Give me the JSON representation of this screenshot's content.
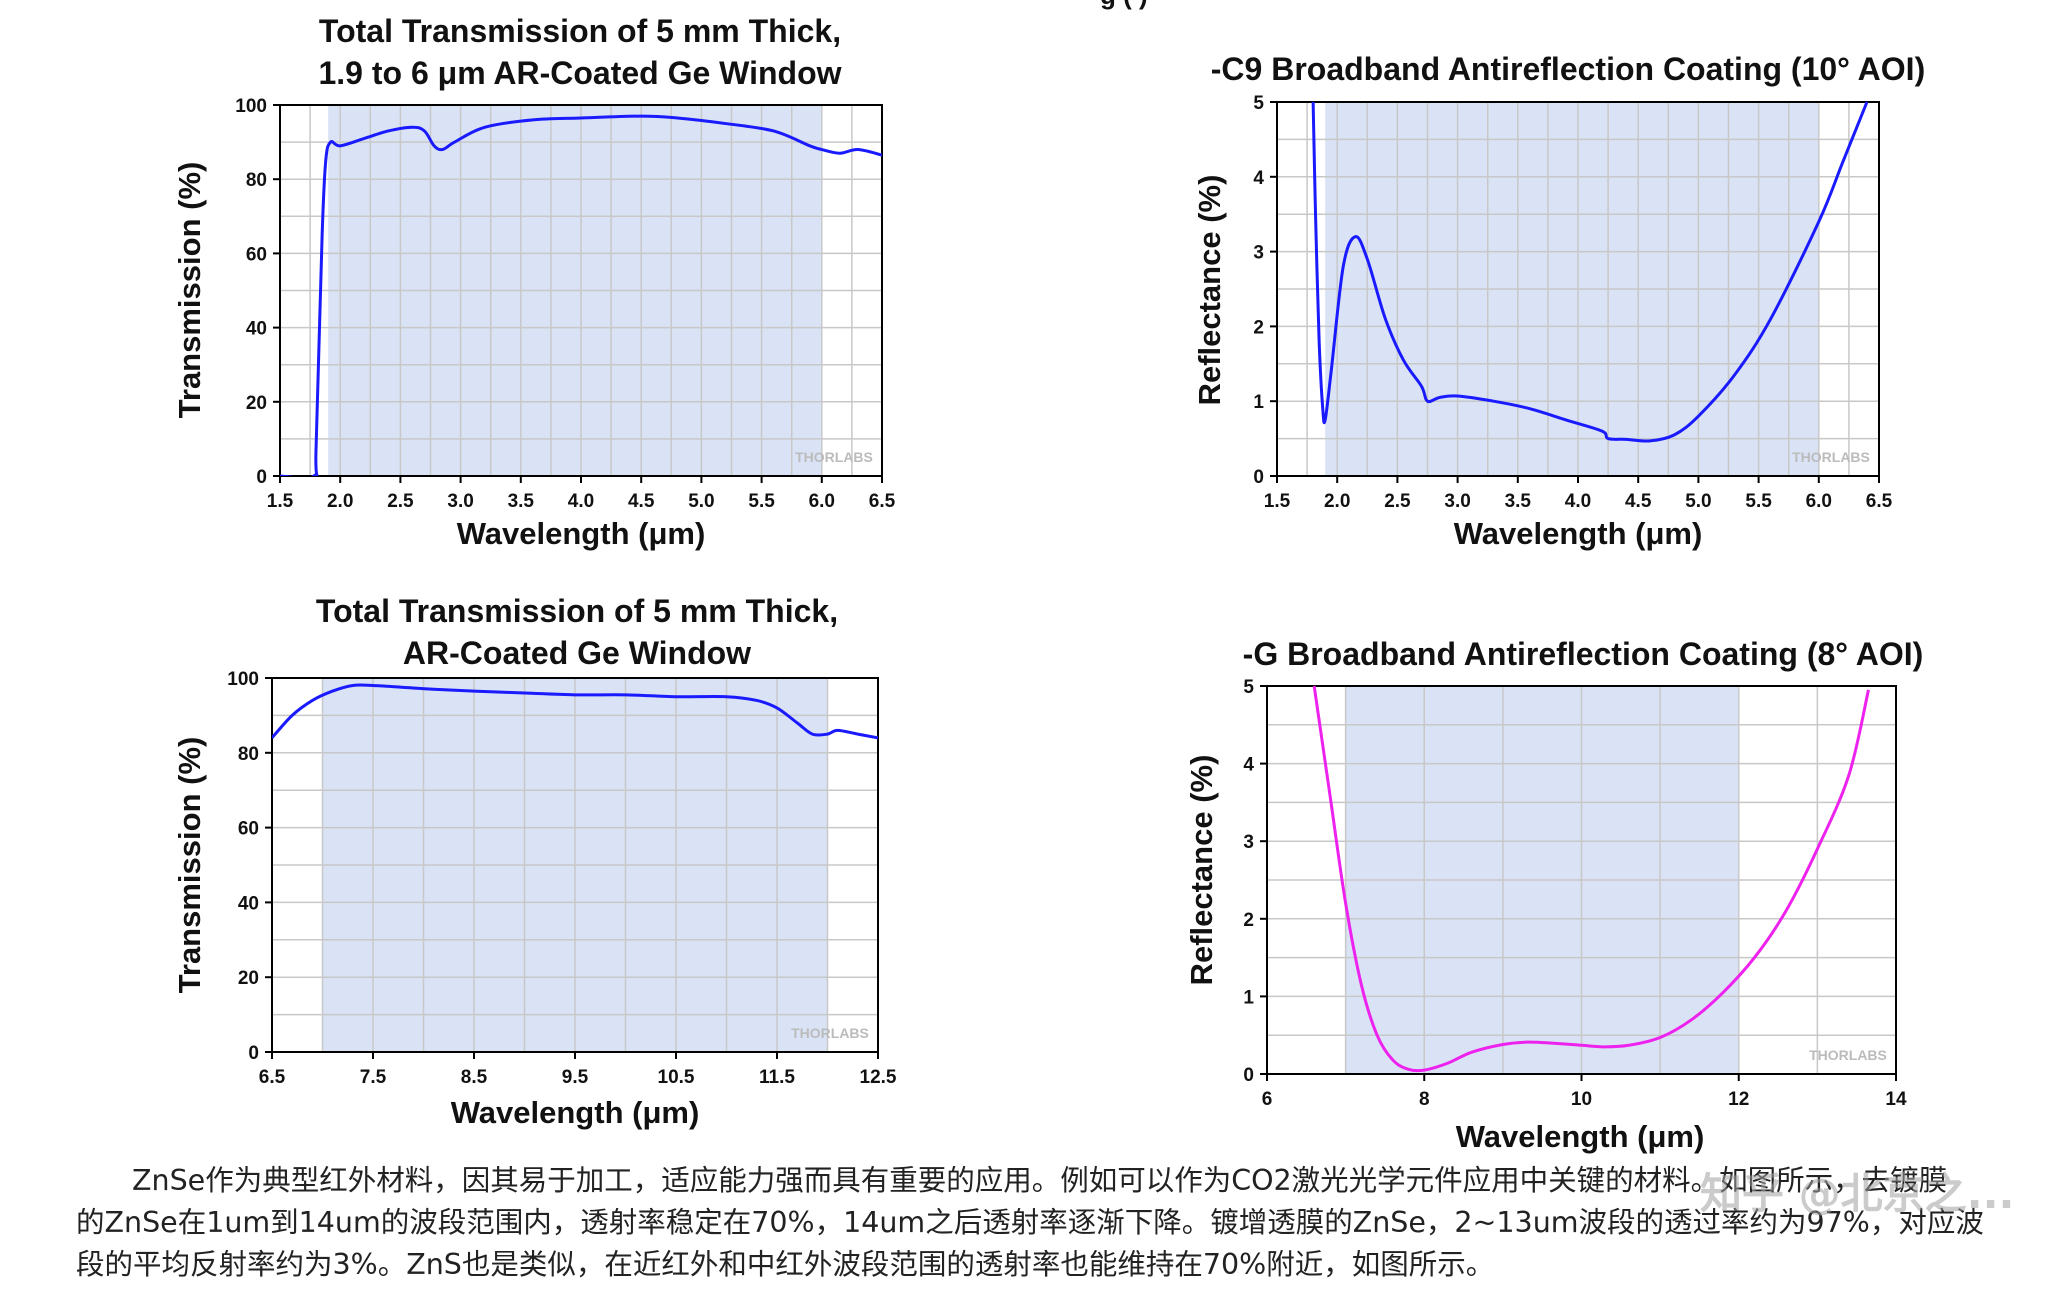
{
  "top_cutoff_text": "g   (  )",
  "watermark_logo": "THORLABS",
  "charts": [
    {
      "title_lines": [
        "Total Transmission of 5 mm Thick,",
        "1.9 to 6 μm AR-Coated Ge Window"
      ],
      "xlabel": "Wavelength (μm)",
      "ylabel": "Transmission (%)",
      "xticks": [
        "1.5",
        "2.0",
        "2.5",
        "3.0",
        "3.5",
        "4.0",
        "4.5",
        "5.0",
        "5.5",
        "6.0",
        "6.5"
      ],
      "yticks": [
        "0",
        "20",
        "40",
        "60",
        "80",
        "100"
      ]
    },
    {
      "title_lines": [
        "-C9 Broadband Antireflection Coating (10° AOI)"
      ],
      "xlabel": "Wavelength (μm)",
      "ylabel": "Reflectance (%)",
      "xticks": [
        "1.5",
        "2.0",
        "2.5",
        "3.0",
        "3.5",
        "4.0",
        "4.5",
        "5.0",
        "5.5",
        "6.0",
        "6.5"
      ],
      "yticks": [
        "0",
        "1",
        "2",
        "3",
        "4",
        "5"
      ]
    },
    {
      "title_lines": [
        "Total Transmission of 5 mm Thick,",
        "AR-Coated Ge Window"
      ],
      "xlabel": "Wavelength (μm)",
      "ylabel": "Transmission (%)",
      "xticks": [
        "6.5",
        "7.5",
        "8.5",
        "9.5",
        "10.5",
        "11.5",
        "12.5"
      ],
      "yticks": [
        "0",
        "20",
        "40",
        "60",
        "80",
        "100"
      ]
    },
    {
      "title_lines": [
        "-G Broadband Antireflection Coating (8° AOI)"
      ],
      "xlabel": "Wavelength (μm)",
      "ylabel": "Reflectance (%)",
      "xticks": [
        "6",
        "8",
        "10",
        "12",
        "14"
      ],
      "yticks": [
        "0",
        "1",
        "2",
        "3",
        "4",
        "5"
      ]
    }
  ],
  "chart_data": [
    {
      "type": "line",
      "title": "Total Transmission of 5 mm Thick, 1.9 to 6 μm AR-Coated Ge Window",
      "xlabel": "Wavelength (μm)",
      "ylabel": "Transmission (%)",
      "xlim": [
        1.5,
        6.5
      ],
      "ylim": [
        0,
        100
      ],
      "grid": true,
      "shaded_band": [
        1.9,
        6.0
      ],
      "line_color": "#1a1aff",
      "x": [
        1.5,
        1.78,
        1.8,
        1.85,
        1.88,
        1.92,
        2.0,
        2.2,
        2.4,
        2.6,
        2.7,
        2.78,
        2.85,
        2.95,
        3.2,
        3.6,
        4.0,
        4.5,
        4.8,
        5.2,
        5.6,
        5.9,
        6.0,
        6.15,
        6.3,
        6.5
      ],
      "y": [
        0,
        0,
        8,
        65,
        85,
        90,
        89,
        91,
        93,
        94,
        93,
        89,
        88,
        90,
        94,
        96,
        96.5,
        97,
        96.5,
        95,
        93,
        89,
        88,
        87,
        88,
        86.5
      ]
    },
    {
      "type": "line",
      "title": "-C9 Broadband Antireflection Coating (10° AOI)",
      "xlabel": "Wavelength (μm)",
      "ylabel": "Reflectance (%)",
      "xlim": [
        1.5,
        6.5
      ],
      "ylim": [
        0,
        5
      ],
      "grid": true,
      "shaded_band": [
        1.9,
        6.0
      ],
      "line_color": "#1a1aff",
      "x": [
        1.8,
        1.82,
        1.85,
        1.88,
        1.9,
        1.95,
        2.05,
        2.15,
        2.25,
        2.4,
        2.55,
        2.7,
        2.75,
        2.85,
        3.0,
        3.3,
        3.6,
        3.9,
        4.2,
        4.25,
        4.4,
        4.6,
        4.8,
        5.0,
        5.3,
        5.6,
        6.0,
        6.2,
        6.4
      ],
      "y": [
        5,
        3.5,
        1.8,
        0.9,
        0.75,
        1.4,
        2.8,
        3.2,
        2.9,
        2.1,
        1.55,
        1.2,
        1.0,
        1.05,
        1.07,
        1.0,
        0.9,
        0.75,
        0.6,
        0.5,
        0.49,
        0.47,
        0.55,
        0.8,
        1.35,
        2.1,
        3.4,
        4.2,
        5.0
      ]
    },
    {
      "type": "line",
      "title": "Total Transmission of 5 mm Thick, AR-Coated Ge Window",
      "xlabel": "Wavelength (μm)",
      "ylabel": "Transmission (%)",
      "xlim": [
        6.5,
        12.5
      ],
      "ylim": [
        0,
        100
      ],
      "grid": true,
      "shaded_band": [
        7.0,
        12.0
      ],
      "line_color": "#1a1aff",
      "x": [
        6.5,
        6.7,
        6.9,
        7.1,
        7.3,
        7.5,
        7.8,
        8.1,
        8.5,
        9.0,
        9.5,
        10.0,
        10.5,
        11.0,
        11.3,
        11.5,
        11.7,
        11.85,
        12.0,
        12.1,
        12.3,
        12.5
      ],
      "y": [
        84,
        90,
        94,
        96.5,
        98,
        98,
        97.5,
        97,
        96.5,
        96,
        95.5,
        95.5,
        95,
        95,
        94,
        92,
        88,
        85,
        85,
        86,
        85,
        84
      ]
    },
    {
      "type": "line",
      "title": "-G Broadband Antireflection Coating (8° AOI)",
      "xlabel": "Wavelength (μm)",
      "ylabel": "Reflectance (%)",
      "xlim": [
        6,
        14
      ],
      "ylim": [
        0,
        5
      ],
      "grid": true,
      "shaded_band": [
        7.0,
        12.0
      ],
      "line_color": "#ee22ee",
      "x": [
        6.6,
        6.8,
        7.0,
        7.2,
        7.4,
        7.6,
        7.8,
        8.0,
        8.3,
        8.6,
        9.0,
        9.3,
        9.6,
        10.0,
        10.3,
        10.6,
        11.0,
        11.4,
        11.8,
        12.2,
        12.6,
        13.0,
        13.4,
        13.65
      ],
      "y": [
        5.0,
        3.6,
        2.2,
        1.15,
        0.5,
        0.18,
        0.06,
        0.05,
        0.14,
        0.28,
        0.38,
        0.41,
        0.4,
        0.37,
        0.35,
        0.37,
        0.47,
        0.7,
        1.05,
        1.5,
        2.1,
        2.9,
        3.85,
        4.95
      ]
    }
  ],
  "caption": {
    "line1": "ZnSe作为典型红外材料，因其易于加工，适应能力强而具有重要的应用。例如可以作为CO2激光光学元件应用中关键的材料。如图所示，去镀膜",
    "line2": "的ZnSe在1um到14um的波段范围内，透射率稳定在70%，14um之后透射率逐渐下降。镀增透膜的ZnSe，2~13um波段的透过率约为97%，对应波",
    "line3": "段的平均反射率约为3%。ZnS也是类似，在近红外和中红外波段范围的透射率也能维持在70%附近，如图所示。"
  },
  "zhihu_watermark": "知乎 @北京之..."
}
